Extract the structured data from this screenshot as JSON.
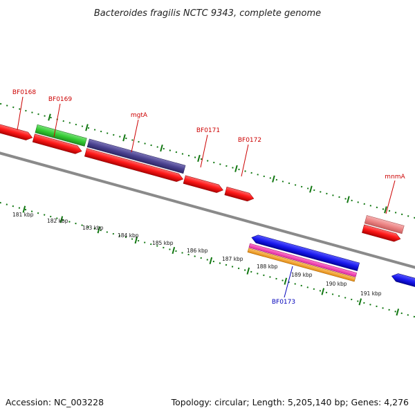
{
  "title": "Bacteroides fragilis NCTC 9343, complete genome",
  "footer": {
    "accession": "Accession: NC_003228",
    "summary": "Topology: circular; Length: 5,205,140 bp; Genes: 4,276"
  },
  "colors": {
    "backbone": "#8a8a8a",
    "tick": "#117711",
    "forward_label": "#cc0000",
    "reverse_label": "#0000bb"
  },
  "kbp_labels": [
    "181 kbp",
    "182 kbp",
    "183 kbp",
    "184 kbp",
    "185 kbp",
    "186 kbp",
    "187 kbp",
    "188 kbp",
    "189 kbp",
    "190 kbp",
    "191 kbp"
  ],
  "gene_labels": [
    {
      "name": "BF0168",
      "strand": "forward"
    },
    {
      "name": "BF0169",
      "strand": "forward"
    },
    {
      "name": "mgtA",
      "strand": "forward"
    },
    {
      "name": "BF0171",
      "strand": "forward"
    },
    {
      "name": "BF0172",
      "strand": "forward"
    },
    {
      "name": "mnmA",
      "strand": "forward"
    },
    {
      "name": "BF0173",
      "strand": "reverse"
    }
  ]
}
